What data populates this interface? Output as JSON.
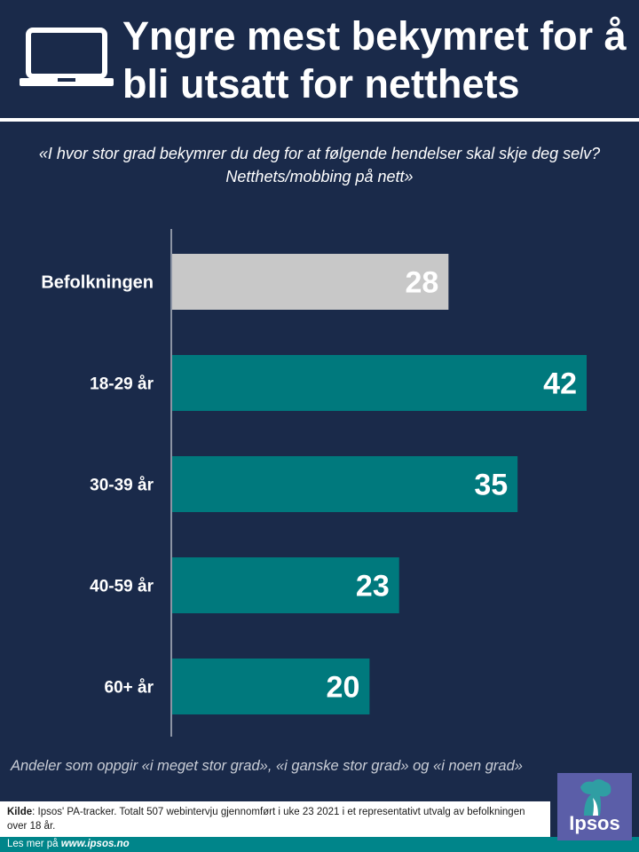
{
  "header": {
    "title": "Yngre mest bekymret for å bli utsatt for netthets",
    "icon": "laptop-icon"
  },
  "subtitle": "«I hvor stor grad bekymrer du deg for at følgende hendelser skal skje deg selv? Netthets/mobbing på nett»",
  "note": "Andeler som oppgir «i meget stor grad», «i ganske stor grad» og «i noen grad»",
  "source": {
    "label": "Kilde",
    "text": ": Ipsos' PA-tracker. Totalt 507 webintervju gjennomført i uke 23 2021 i et representativt utvalg av befolkningen over 18 år."
  },
  "footer": {
    "prefix": "Les mer på ",
    "link": "www.ipsos.no"
  },
  "logo": {
    "text": "Ipsos"
  },
  "colors": {
    "background": "#1a2a4a",
    "total_bar": "#c8c8c8",
    "age_bar": "#00797d",
    "footer": "#00858a",
    "logo": "#5b5ea8"
  },
  "chart_data": {
    "type": "bar",
    "orientation": "horizontal",
    "categories": [
      "Befolkningen",
      "18-29 år",
      "30-39 år",
      "40-59 år",
      "60+ år"
    ],
    "values": [
      28,
      42,
      35,
      23,
      20
    ],
    "bar_colors": [
      "#c8c8c8",
      "#00797d",
      "#00797d",
      "#00797d",
      "#00797d"
    ],
    "xlim": [
      0,
      45
    ]
  }
}
